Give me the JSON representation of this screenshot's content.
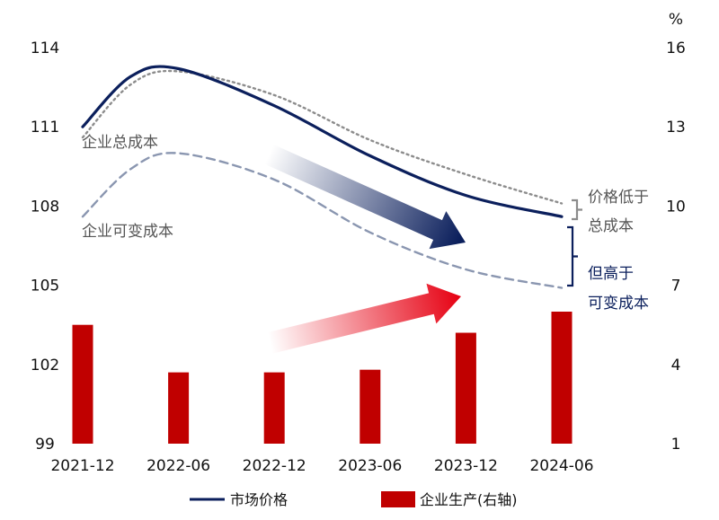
{
  "colors": {
    "navy": "#0b1f5c",
    "gray_dotted": "#8c8c8c",
    "gray_dashed": "#8a96b0",
    "bar_red": "#c00000",
    "text_gray": "#555555",
    "text_navy": "#0b1f5c"
  },
  "chart_data": {
    "type": "line",
    "categories": [
      "2021-12",
      "2022-06",
      "2022-12",
      "2023-06",
      "2023-12",
      "2024-06"
    ],
    "left_axis": {
      "unit": "",
      "ticks": [
        "99",
        "102",
        "105",
        "108",
        "111",
        "114"
      ],
      "ylim": [
        99,
        114
      ]
    },
    "right_axis": {
      "unit": "%",
      "ticks": [
        "1",
        "4",
        "7",
        "10",
        "13",
        "16"
      ],
      "ylim": [
        1,
        16
      ]
    },
    "series": [
      {
        "name": "市场价格",
        "type": "line",
        "axis": "left",
        "style": "solid",
        "x": [
          "2021-12",
          "2022-03",
          "2022-06",
          "2022-12",
          "2023-06",
          "2023-12",
          "2024-06"
        ],
        "values": [
          111.0,
          112.9,
          113.2,
          111.8,
          109.9,
          108.4,
          107.6
        ]
      },
      {
        "name": "企业总成本",
        "type": "line",
        "axis": "left",
        "style": "dotted",
        "x": [
          "2021-12",
          "2022-03",
          "2022-06",
          "2022-12",
          "2023-06",
          "2023-12",
          "2024-06"
        ],
        "values": [
          110.6,
          112.6,
          113.1,
          112.2,
          110.5,
          109.2,
          108.1
        ]
      },
      {
        "name": "企业可变成本",
        "type": "line",
        "axis": "left",
        "style": "dashed",
        "x": [
          "2021-12",
          "2022-03",
          "2022-06",
          "2022-12",
          "2023-06",
          "2023-12",
          "2024-06"
        ],
        "values": [
          107.6,
          109.4,
          110.0,
          109.0,
          107.0,
          105.6,
          104.9
        ]
      },
      {
        "name": "企业生产(右轴)",
        "type": "bar",
        "axis": "right",
        "x": [
          "2021-12",
          "2022-06",
          "2022-12",
          "2023-06",
          "2023-12",
          "2024-06"
        ],
        "values": [
          5.5,
          3.7,
          3.7,
          3.8,
          5.2,
          6.0
        ]
      }
    ],
    "annotations": [
      {
        "text_lines": [
          "价格低于",
          "总成本"
        ],
        "color": "gray"
      },
      {
        "text_lines": [
          "但高于",
          "可变成本"
        ],
        "color": "navy"
      }
    ],
    "grid": false,
    "legend": {
      "position": "bottom",
      "entries": [
        "市场价格",
        "企业生产(右轴)"
      ]
    }
  }
}
